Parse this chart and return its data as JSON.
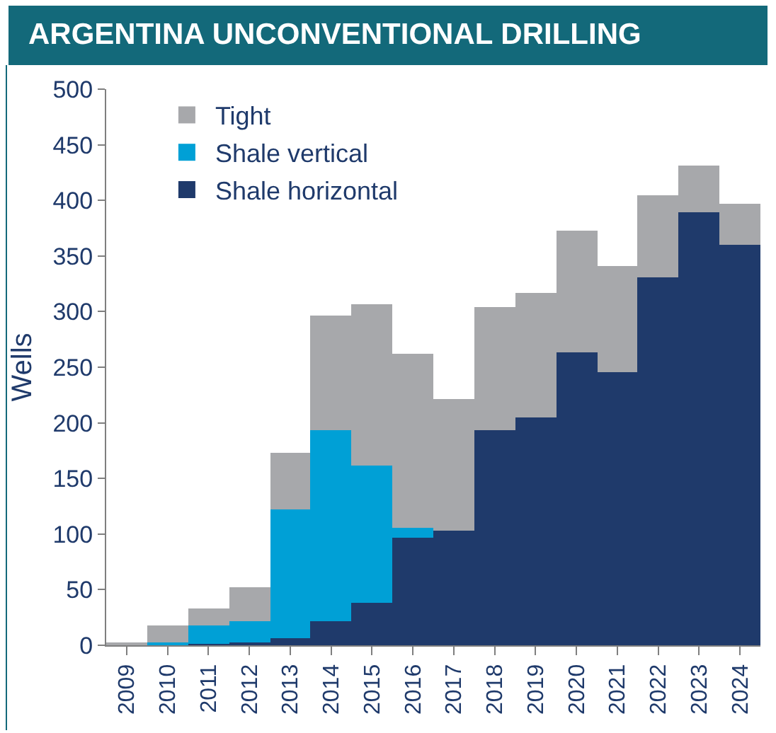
{
  "chart_data": {
    "type": "bar",
    "title": "ARGENTINA UNCONVENTIONAL DRILLING",
    "ylabel": "Wells",
    "categories": [
      "2009",
      "2010",
      "2011",
      "2012",
      "2013",
      "2014",
      "2015",
      "2016",
      "2017",
      "2018",
      "2019",
      "2020",
      "2021",
      "2022",
      "2023",
      "2024"
    ],
    "stacked": true,
    "ylim": [
      0,
      500
    ],
    "yticks": [
      0,
      50,
      100,
      150,
      200,
      250,
      300,
      350,
      400,
      450,
      500
    ],
    "grid": false,
    "legend": "top left",
    "series": [
      {
        "name": "Shale horizontal",
        "color": "#1f3a6b",
        "values": [
          0,
          0,
          1,
          3,
          7,
          21,
          38,
          97,
          103,
          193,
          205,
          264,
          245,
          331,
          389,
          360
        ]
      },
      {
        "name": "Shale vertical",
        "color": "#00a0d6",
        "values": [
          0,
          3,
          17,
          18,
          115,
          173,
          123,
          8,
          0,
          0,
          0,
          0,
          0,
          0,
          0,
          0
        ]
      },
      {
        "name": "Tight",
        "color": "#a7a8ab",
        "values": [
          3,
          15,
          15,
          31,
          51,
          103,
          146,
          157,
          119,
          111,
          112,
          109,
          96,
          74,
          42,
          37
        ]
      }
    ]
  }
}
